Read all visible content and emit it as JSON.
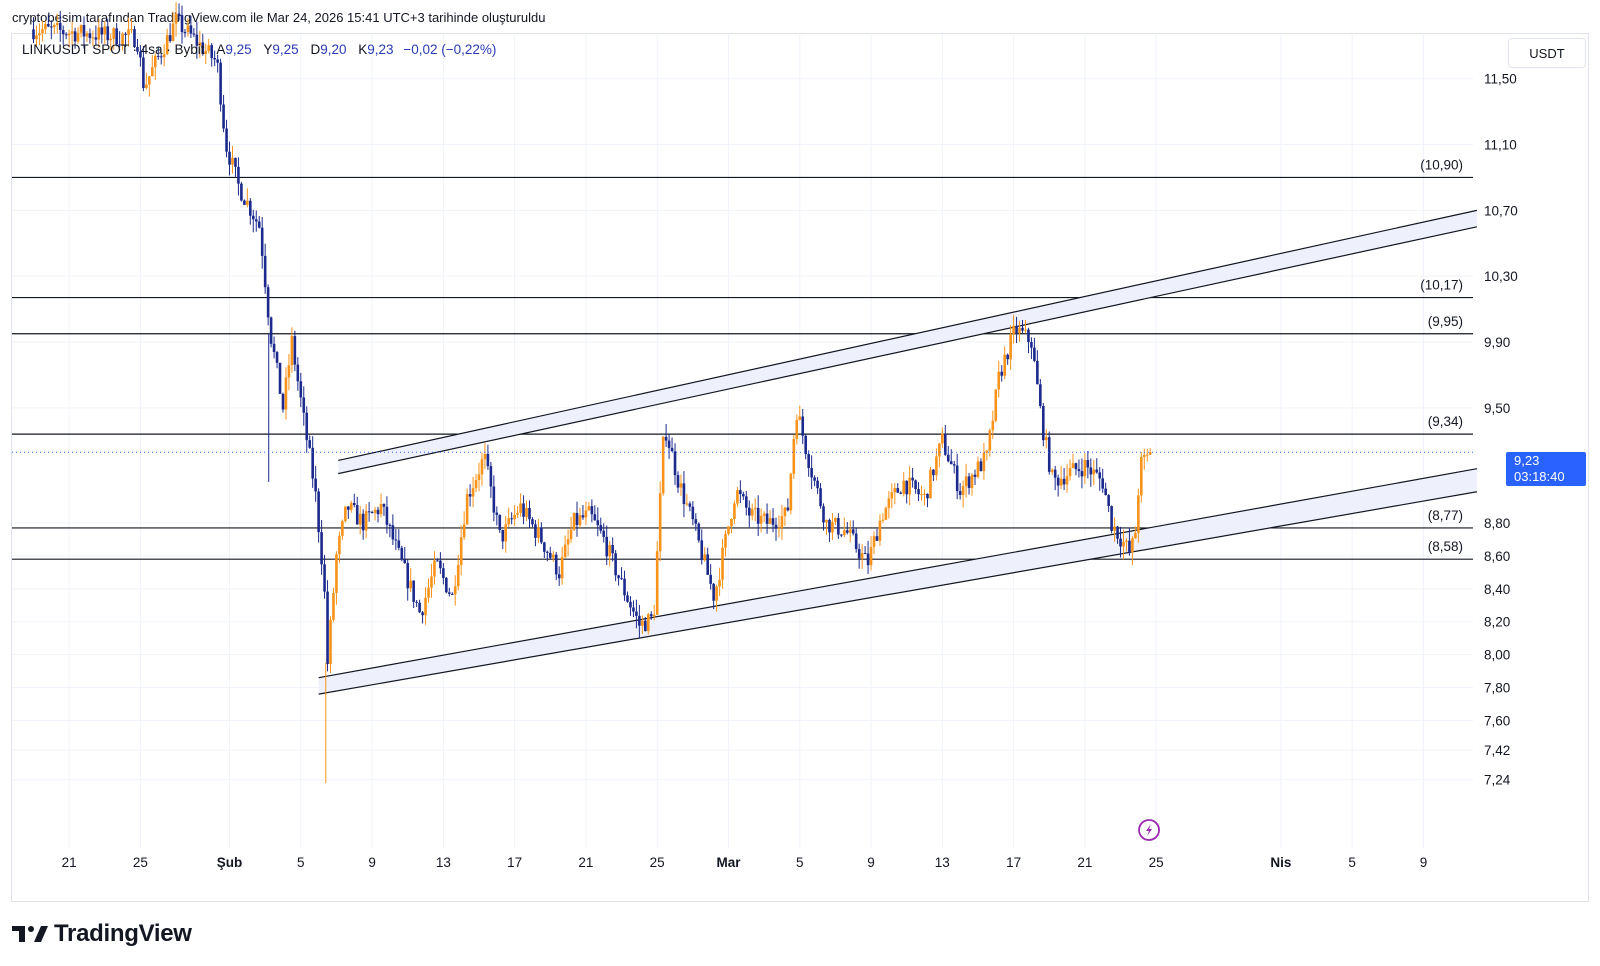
{
  "credit": "cryptobesim tarafından TradingView.com ile Mar 24, 2026 15:41 UTC+3 tarihinde oluşturuldu",
  "legend": {
    "symbol": "LINKUSDT SPOT · 4sa · Bybit",
    "open_label": "A",
    "open": "9,25",
    "high_label": "Y",
    "high": "9,25",
    "low_label": "D",
    "low": "9,20",
    "close_label": "K",
    "close": "9,23",
    "change": "−0,02 (−0,22%)"
  },
  "currency": "USDT",
  "price_tag": {
    "price": "9,23",
    "countdown": "03:18:40"
  },
  "logo_text": "TradingView",
  "colors": {
    "up": "#f7931a",
    "down": "#1b2a8c",
    "tag": "#2962ff",
    "grid": "#f0f3fa",
    "line": "#131722"
  },
  "chart_data": {
    "type": "candlestick",
    "title": "LINKUSDT SPOT · 4sa · Bybit",
    "y_ticks": [
      "11,50",
      "11,10",
      "10,70",
      "10,30",
      "9,90",
      "9,50",
      "8,80",
      "8,60",
      "8,40",
      "8,20",
      "8,00",
      "7,80",
      "7,60",
      "7,42",
      "7,24"
    ],
    "x_ticks": [
      {
        "label": "21",
        "day": -8
      },
      {
        "label": "25",
        "day": -4
      },
      {
        "label": "Şub",
        "day": 1,
        "bold": true
      },
      {
        "label": "5",
        "day": 5
      },
      {
        "label": "9",
        "day": 9
      },
      {
        "label": "13",
        "day": 13
      },
      {
        "label": "17",
        "day": 17
      },
      {
        "label": "21",
        "day": 21
      },
      {
        "label": "25",
        "day": 25
      },
      {
        "label": "Mar",
        "day": 29,
        "bold": true
      },
      {
        "label": "5",
        "day": 33
      },
      {
        "label": "9",
        "day": 37
      },
      {
        "label": "13",
        "day": 41
      },
      {
        "label": "17",
        "day": 45
      },
      {
        "label": "21",
        "day": 49
      },
      {
        "label": "25",
        "day": 53
      },
      {
        "label": "Nis",
        "day": 60,
        "bold": true
      },
      {
        "label": "5",
        "day": 64
      },
      {
        "label": "9",
        "day": 68
      }
    ],
    "levels": [
      {
        "price": 10.9,
        "label": "(10,90)"
      },
      {
        "price": 10.17,
        "label": "(10,17)"
      },
      {
        "price": 9.95,
        "label": "(9,95)"
      },
      {
        "price": 9.34,
        "label": "(9,34)"
      },
      {
        "price": 8.77,
        "label": "(8,77)"
      },
      {
        "price": 8.58,
        "label": "(8,58)"
      }
    ],
    "current_price": 9.23,
    "channel": {
      "upper": [
        {
          "day": 7.1,
          "a": 9.18,
          "b": 9.1
        },
        {
          "day": 71.0,
          "a": 10.7,
          "b": 10.6
        }
      ],
      "lower": [
        {
          "day": 6.0,
          "a": 7.86,
          "b": 7.76
        },
        {
          "day": 71.0,
          "a": 9.13,
          "b": 8.99
        }
      ]
    },
    "anchors": [
      {
        "day": -10,
        "p": 11.8
      },
      {
        "day": -4.2,
        "p": 11.75
      },
      {
        "day": -3.8,
        "p": 11.45
      },
      {
        "day": -2,
        "p": 11.85
      },
      {
        "day": 0.3,
        "p": 11.6
      },
      {
        "day": 0.8,
        "p": 11.1
      },
      {
        "day": 1.5,
        "p": 10.85
      },
      {
        "day": 2.7,
        "p": 10.6
      },
      {
        "day": 3.3,
        "p": 9.95
      },
      {
        "day": 4,
        "p": 9.5
      },
      {
        "day": 4.5,
        "p": 9.9
      },
      {
        "day": 5.2,
        "p": 9.4
      },
      {
        "day": 5.8,
        "p": 9.0
      },
      {
        "day": 6.3,
        "p": 8.45
      },
      {
        "day": 6.5,
        "p": 7.95
      },
      {
        "day": 7,
        "p": 8.6
      },
      {
        "day": 7.6,
        "p": 8.9
      },
      {
        "day": 8.5,
        "p": 8.8
      },
      {
        "day": 9.5,
        "p": 8.9
      },
      {
        "day": 10.5,
        "p": 8.6
      },
      {
        "day": 11.7,
        "p": 8.25
      },
      {
        "day": 12.6,
        "p": 8.55
      },
      {
        "day": 13.5,
        "p": 8.35
      },
      {
        "day": 14.3,
        "p": 8.95
      },
      {
        "day": 15.3,
        "p": 9.2
      },
      {
        "day": 16.2,
        "p": 8.7
      },
      {
        "day": 17.3,
        "p": 8.9
      },
      {
        "day": 18.5,
        "p": 8.7
      },
      {
        "day": 19.5,
        "p": 8.5
      },
      {
        "day": 20.3,
        "p": 8.8
      },
      {
        "day": 21.2,
        "p": 8.85
      },
      {
        "day": 22,
        "p": 8.7
      },
      {
        "day": 23.1,
        "p": 8.4
      },
      {
        "day": 24,
        "p": 8.18
      },
      {
        "day": 24.8,
        "p": 8.22
      },
      {
        "day": 25.4,
        "p": 9.4
      },
      {
        "day": 26.2,
        "p": 9.05
      },
      {
        "day": 27,
        "p": 8.8
      },
      {
        "day": 28.2,
        "p": 8.35
      },
      {
        "day": 29.4,
        "p": 9.0
      },
      {
        "day": 30.2,
        "p": 8.85
      },
      {
        "day": 31.2,
        "p": 8.8
      },
      {
        "day": 32.3,
        "p": 8.85
      },
      {
        "day": 32.8,
        "p": 9.5
      },
      {
        "day": 33.7,
        "p": 9.1
      },
      {
        "day": 34.5,
        "p": 8.8
      },
      {
        "day": 35.6,
        "p": 8.75
      },
      {
        "day": 36.8,
        "p": 8.55
      },
      {
        "day": 37.6,
        "p": 8.85
      },
      {
        "day": 38.8,
        "p": 9.05
      },
      {
        "day": 40,
        "p": 8.95
      },
      {
        "day": 41,
        "p": 9.3
      },
      {
        "day": 42,
        "p": 9.0
      },
      {
        "day": 43.5,
        "p": 9.2
      },
      {
        "day": 44.2,
        "p": 9.7
      },
      {
        "day": 45.1,
        "p": 9.98
      },
      {
        "day": 46,
        "p": 9.9
      },
      {
        "day": 46.6,
        "p": 9.4
      },
      {
        "day": 47.2,
        "p": 9.05
      },
      {
        "day": 48,
        "p": 9.1
      },
      {
        "day": 49,
        "p": 9.15
      },
      {
        "day": 50,
        "p": 9.05
      },
      {
        "day": 50.5,
        "p": 8.8
      },
      {
        "day": 51.5,
        "p": 8.62
      },
      {
        "day": 51.8,
        "p": 8.7
      },
      {
        "day": 52.1,
        "p": 9.15
      },
      {
        "day": 52.8,
        "p": 9.23
      }
    ]
  }
}
